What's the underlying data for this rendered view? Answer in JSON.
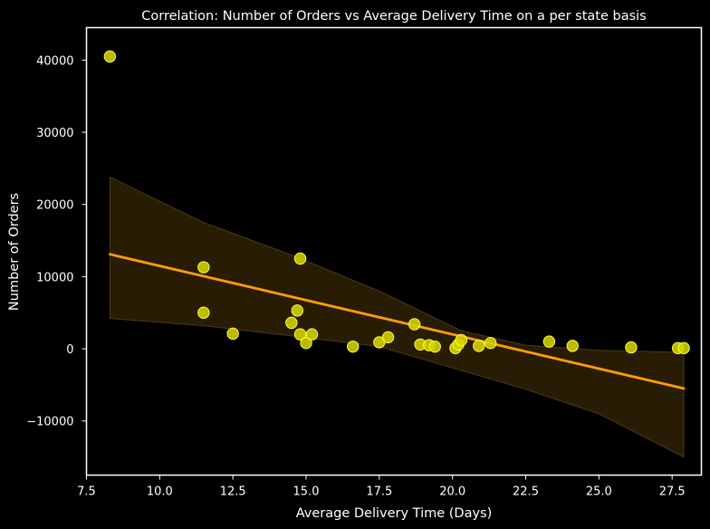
{
  "chart_data": {
    "type": "scatter",
    "title": "Correlation: Number of Orders vs Average Delivery Time on a per state basis",
    "xlabel": "Average Delivery Time (Days)",
    "ylabel": "Number of Orders",
    "xlim": [
      7.5,
      28.5
    ],
    "ylim": [
      -17500,
      44500
    ],
    "x_ticks": [
      7.5,
      10.0,
      12.5,
      15.0,
      17.5,
      20.0,
      22.5,
      25.0,
      27.5
    ],
    "x_tick_labels": [
      "7.5",
      "10.0",
      "12.5",
      "15.0",
      "17.5",
      "20.0",
      "22.5",
      "25.0",
      "27.5"
    ],
    "y_ticks": [
      -10000,
      0,
      10000,
      20000,
      30000,
      40000
    ],
    "y_tick_labels": [
      "−10000",
      "0",
      "10000",
      "20000",
      "30000",
      "40000"
    ],
    "grid": false,
    "points": [
      {
        "x": 8.3,
        "y": 40500
      },
      {
        "x": 11.5,
        "y": 11300
      },
      {
        "x": 11.5,
        "y": 5000
      },
      {
        "x": 12.5,
        "y": 2100
      },
      {
        "x": 14.5,
        "y": 3600
      },
      {
        "x": 14.7,
        "y": 5300
      },
      {
        "x": 14.8,
        "y": 12500
      },
      {
        "x": 14.8,
        "y": 2000
      },
      {
        "x": 15.0,
        "y": 800
      },
      {
        "x": 15.2,
        "y": 2000
      },
      {
        "x": 16.6,
        "y": 300
      },
      {
        "x": 17.5,
        "y": 900
      },
      {
        "x": 17.8,
        "y": 1600
      },
      {
        "x": 18.7,
        "y": 3400
      },
      {
        "x": 18.9,
        "y": 600
      },
      {
        "x": 19.2,
        "y": 500
      },
      {
        "x": 19.4,
        "y": 300
      },
      {
        "x": 20.1,
        "y": 100
      },
      {
        "x": 20.2,
        "y": 600
      },
      {
        "x": 20.3,
        "y": 1200
      },
      {
        "x": 20.9,
        "y": 400
      },
      {
        "x": 21.3,
        "y": 800
      },
      {
        "x": 23.3,
        "y": 1000
      },
      {
        "x": 24.1,
        "y": 400
      },
      {
        "x": 26.1,
        "y": 200
      },
      {
        "x": 27.7,
        "y": 100
      },
      {
        "x": 27.9,
        "y": 100
      }
    ],
    "regression_line": {
      "x": [
        8.3,
        27.9
      ],
      "y": [
        13100,
        -5500
      ]
    },
    "confidence_band": {
      "x": [
        8.3,
        11.5,
        14.5,
        17.5,
        20.3,
        22.5,
        25.0,
        27.9
      ],
      "upper": [
        23800,
        17500,
        13000,
        8000,
        2500,
        500,
        -200,
        -500
      ],
      "lower": [
        4200,
        3200,
        1800,
        300,
        -3000,
        -5600,
        -9000,
        -15000
      ]
    },
    "colors": {
      "background": "#000000",
      "points": "#d4d400",
      "point_edge": "#ffff33",
      "line": "#ff9e0a",
      "band": "#2b1d05",
      "band_edge": "#4a3a15",
      "axes": "#ffffff"
    }
  }
}
